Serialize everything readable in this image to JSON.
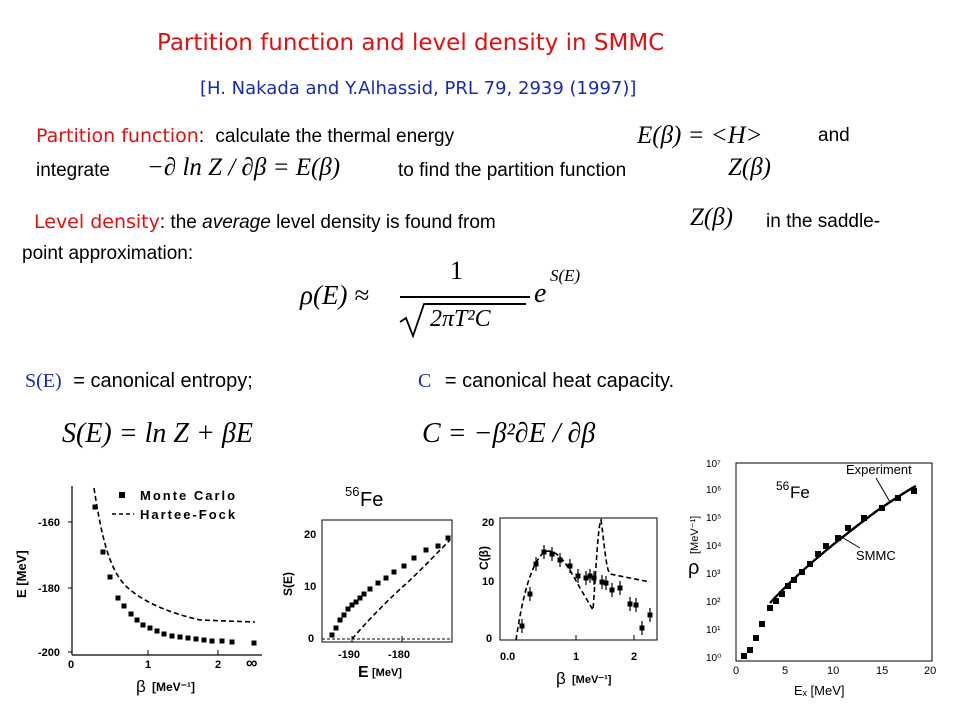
{
  "title": "Partition function and level density in SMMC",
  "reference": "[H. Nakada and Y.Alhassid, PRL 79, 2939 (1997)]",
  "partition": {
    "label": "Partition function",
    "colon": ":",
    "text1": "calculate the thermal energy",
    "and": "and",
    "integrate": "integrate",
    "text2": "to find the partition function",
    "eq_energy": "E(β) = <H>",
    "eq_derivative": "−∂ ln Z / ∂β = E(β)",
    "eq_Z": "Z(β)"
  },
  "level": {
    "label": "Level density",
    "colon": ":",
    "text_a": " the ",
    "text_avg": "average",
    "text_b": " level density is found from",
    "text_c": "in the saddle-",
    "text_d": "point approximation:",
    "eq_Z": "Z(β)",
    "formula": {
      "lhs": "ρ(E) ≈",
      "numerator": "1",
      "denominator": "2πT²C",
      "exp_base": "e",
      "exp_power": "S(E)"
    }
  },
  "defs": {
    "s_symbol": "S(E)",
    "s_text": "= canonical entropy;",
    "c_symbol": "C",
    "c_text": "= canonical heat capacity.",
    "s_eq": "S(E) = ln Z + βE",
    "c_eq": "C = −β²∂E / ∂β"
  },
  "plot1": {
    "legend_mc": "Monte Carlo",
    "legend_hf": "Hartee-Fock",
    "ylabel": "E [MeV]",
    "xlabel_sym": "β",
    "xlabel_unit": "[MeV⁻¹]",
    "yticks": [
      "-160",
      "-180",
      "-200"
    ],
    "xticks": [
      "0",
      "1",
      "2",
      "∞"
    ]
  },
  "plot2": {
    "nucleus_mass": "56",
    "nucleus_sym": "Fe",
    "ylabel": "S(E)",
    "xlabel_sym": "E",
    "xlabel_unit": "[MeV]",
    "yticks": [
      "20",
      "10",
      "0"
    ],
    "xticks": [
      "-190",
      "-180"
    ]
  },
  "plot3": {
    "ylabel": "C(β)",
    "xlabel_sym": "β",
    "xlabel_unit": "[MeV⁻¹]",
    "yticks": [
      "20",
      "10",
      "0"
    ],
    "xticks": [
      "0.0",
      "1",
      "2"
    ]
  },
  "plot4": {
    "nucleus_mass": "56",
    "nucleus_sym": "Fe",
    "label_experiment": "Experiment",
    "label_smmc": "SMMC",
    "ylabel_sym": "ρ",
    "ylabel_unit": "[MeV⁻¹]",
    "xlabel": "Eₓ  [MeV]",
    "yticks": [
      "10⁰",
      "10¹",
      "10²",
      "10³",
      "10⁴",
      "10⁵",
      "10⁶",
      "10⁷"
    ],
    "xticks": [
      "0",
      "5",
      "10",
      "15",
      "20"
    ]
  }
}
